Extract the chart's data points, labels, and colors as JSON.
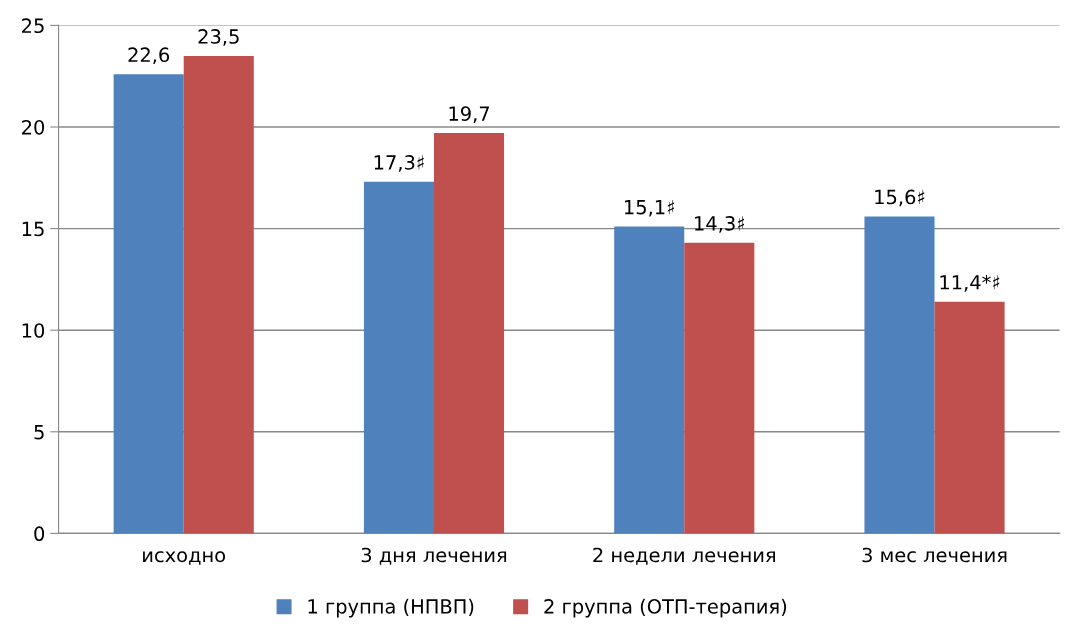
{
  "chart_data": {
    "type": "bar",
    "categories": [
      "исходно",
      "3 дня лечения",
      "2 недели лечения",
      "3 мес лечения"
    ],
    "series": [
      {
        "name": "1 группа (НПВП)",
        "color": "#4f81bd",
        "values": [
          22.6,
          17.3,
          15.1,
          15.6
        ],
        "value_labels": [
          "22,6",
          "17,3♯",
          "15,1♯",
          "15,6♯"
        ]
      },
      {
        "name": "2 группа (ОТП-терапия)",
        "color": "#c0504d",
        "values": [
          23.5,
          19.7,
          14.3,
          11.4
        ],
        "value_labels": [
          "23,5",
          "19,7",
          "14,3♯",
          "11,4*♯"
        ]
      }
    ],
    "ylim": [
      0,
      25
    ],
    "yticks": [
      0,
      5,
      10,
      15,
      20,
      25
    ],
    "grid": "y",
    "legend": "bottom"
  }
}
